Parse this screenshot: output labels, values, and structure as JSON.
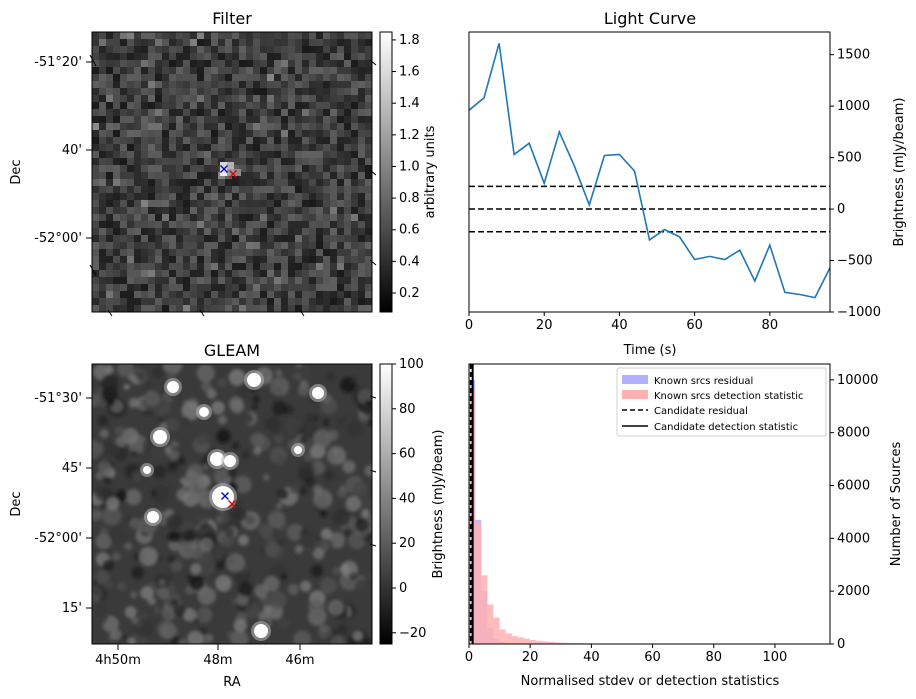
{
  "chart_data": [
    {
      "type": "heatmap",
      "title": "Filter",
      "ylabel": "Dec",
      "yticks": [
        "-51°20'",
        "40'",
        "-52°00'"
      ],
      "colorbar": {
        "label": "arbitrary units",
        "range": [
          0.08,
          1.85
        ],
        "ticks": [
          "1.8",
          "1.6",
          "1.4",
          "1.2",
          "1.0",
          "0.8",
          "0.6",
          "0.4",
          "0.2"
        ]
      },
      "markers": [
        {
          "symbol": "x",
          "color": "#0000cc"
        },
        {
          "symbol": "x",
          "color": "#dd0000"
        }
      ],
      "grid": false
    },
    {
      "type": "line",
      "title": "Light Curve",
      "xlabel": "Time (s)",
      "ylabel": "Brightness (mJy/beam)",
      "xlim": [
        0,
        96
      ],
      "ylim": [
        -1000,
        1720
      ],
      "xticks": [
        0,
        20,
        40,
        60,
        80
      ],
      "yticks": [
        -1000,
        -500,
        0,
        500,
        1000,
        1500
      ],
      "series": [
        {
          "color": "#1f77b4",
          "x": [
            0,
            4,
            8,
            12,
            16,
            20,
            24,
            28,
            32,
            36,
            40,
            44,
            48,
            52,
            56,
            60,
            64,
            68,
            72,
            76,
            80,
            84,
            88,
            92,
            96
          ],
          "y": [
            960,
            1080,
            1610,
            530,
            640,
            250,
            750,
            420,
            40,
            520,
            530,
            370,
            -300,
            -200,
            -270,
            -490,
            -460,
            -490,
            -400,
            -700,
            -350,
            -810,
            -830,
            -860,
            -570
          ]
        }
      ],
      "hlines": [
        220,
        0,
        -220
      ],
      "grid": false
    },
    {
      "type": "heatmap",
      "title": "GLEAM",
      "xlabel": "RA",
      "ylabel": "Dec",
      "xticks": [
        "4h50m",
        "48m",
        "46m"
      ],
      "yticks": [
        "-51°30'",
        "45'",
        "-52°00'",
        "15'"
      ],
      "colorbar": {
        "label": "Brightness (mJy/beam)",
        "range": [
          -25,
          100
        ],
        "ticks": [
          "100",
          "80",
          "60",
          "40",
          "20",
          "0",
          "−20"
        ]
      },
      "grid": false
    },
    {
      "type": "bar",
      "xlabel": "Normalised stdev or detection statistics",
      "ylabel": "Number of Sources",
      "xlim": [
        0,
        118
      ],
      "ylim": [
        0,
        10600
      ],
      "xticks": [
        0,
        20,
        40,
        60,
        80,
        100
      ],
      "yticks": [
        0,
        2000,
        4000,
        6000,
        8000,
        10000
      ],
      "bin_width": 2,
      "series": [
        {
          "name": "Known srcs residual",
          "color": "#b0b0ff",
          "bin_starts": [
            0,
            2,
            4,
            6,
            8,
            10,
            12
          ],
          "values": [
            10000,
            4700,
            2000,
            600,
            200,
            80,
            30
          ]
        },
        {
          "name": "Known srcs detection statistic",
          "color": "#ffb0b0",
          "bin_starts": [
            0,
            2,
            4,
            6,
            8,
            10,
            12,
            14,
            16,
            18,
            20,
            22,
            24,
            26,
            28,
            30,
            32,
            34,
            36,
            38,
            40,
            44,
            48,
            52,
            56,
            60,
            66,
            70,
            80,
            92,
            110
          ],
          "values": [
            9600,
            4600,
            2600,
            1500,
            1000,
            550,
            400,
            300,
            250,
            200,
            150,
            120,
            100,
            80,
            60,
            50,
            40,
            35,
            30,
            25,
            20,
            15,
            12,
            10,
            8,
            6,
            5,
            4,
            3,
            2,
            2
          ]
        }
      ],
      "candidate_residual_x": 0.6,
      "candidate_detection_statistic_x": 1.2,
      "legend": [
        "Known srcs residual",
        "Known srcs detection statistic",
        "Candidate residual",
        "Candidate detection statistic"
      ],
      "legend_position": "top-right",
      "grid": false
    }
  ]
}
